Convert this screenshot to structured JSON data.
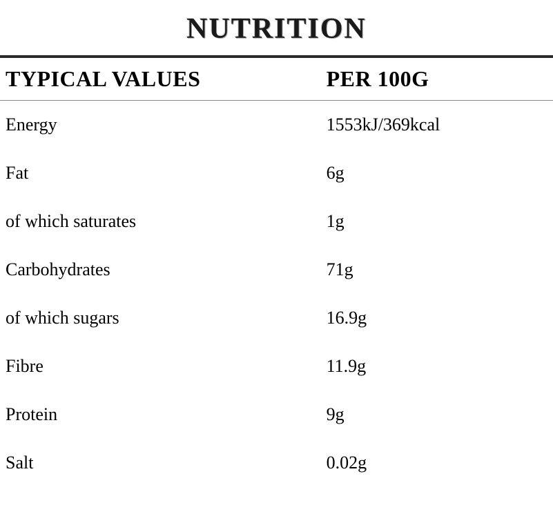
{
  "title": "NUTRITION",
  "header": {
    "label": "TYPICAL VALUES",
    "value": "PER 100G"
  },
  "rows": [
    {
      "label": "Energy",
      "value": "1553kJ/369kcal"
    },
    {
      "label": "Fat",
      "value": "6g"
    },
    {
      "label": "of which saturates",
      "value": "1g"
    },
    {
      "label": "Carbohydrates",
      "value": "71g"
    },
    {
      "label": "of which sugars",
      "value": "16.9g"
    },
    {
      "label": "Fibre",
      "value": "11.9g"
    },
    {
      "label": "Protein",
      "value": "9g"
    },
    {
      "label": "Salt",
      "value": "0.02g"
    }
  ],
  "style": {
    "background_color": "#ffffff",
    "text_color": "#000000",
    "thick_rule_color": "#2a2a2a",
    "thin_rule_color": "#888888",
    "title_fontsize": 42,
    "header_fontsize": 32,
    "body_fontsize": 26,
    "font_family": "Georgia, 'Times New Roman', serif",
    "col_label_width_pct": 58,
    "col_value_width_pct": 42,
    "row_padding_v": 20
  }
}
